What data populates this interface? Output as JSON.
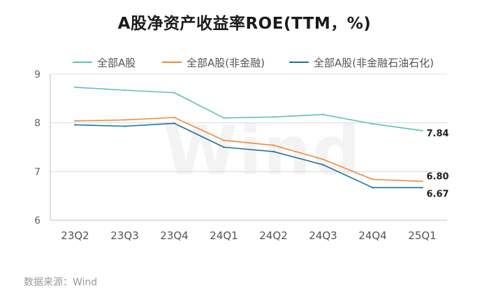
{
  "title": "A股净资产收益率ROE(TTM，%)",
  "source": "数据来源：Wind",
  "watermark": "Wind",
  "chart_data": {
    "type": "line",
    "title": "A股净资产收益率ROE(TTM，%)",
    "categories": [
      "23Q2",
      "23Q3",
      "23Q4",
      "24Q1",
      "24Q2",
      "24Q3",
      "24Q4",
      "25Q1"
    ],
    "ylim": [
      6,
      9
    ],
    "yticks": [
      6,
      7,
      8,
      9
    ],
    "grid": true,
    "legend_position": "top",
    "series": [
      {
        "name": "全部A股",
        "color": "#5cc3b8",
        "values": [
          8.73,
          8.67,
          8.62,
          8.1,
          8.12,
          8.17,
          7.98,
          7.84
        ],
        "end_label": "7.84"
      },
      {
        "name": "全部A股(非金融)",
        "color": "#ee8a3c",
        "values": [
          8.04,
          8.06,
          8.11,
          7.64,
          7.54,
          7.25,
          6.84,
          6.8
        ],
        "end_label": "6.80"
      },
      {
        "name": "全部A股(非金融石油石化)",
        "color": "#1f7396",
        "values": [
          7.96,
          7.93,
          7.99,
          7.5,
          7.41,
          7.14,
          6.67,
          6.67
        ],
        "end_label": "6.67"
      }
    ]
  }
}
